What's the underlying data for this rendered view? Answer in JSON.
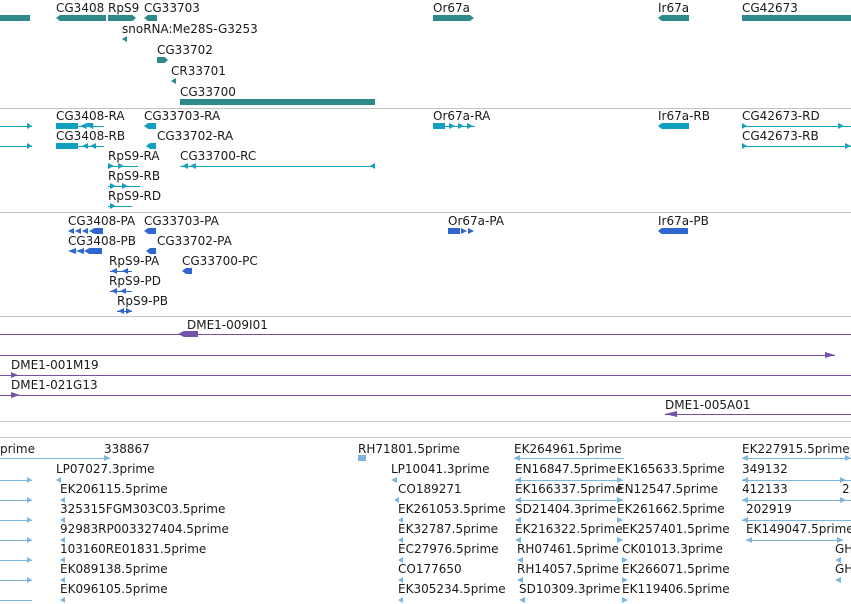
{
  "colors": {
    "gene": "#2e8a8a",
    "transcript": "#119fbf",
    "protein": "#2f66cf",
    "clone": "#7452a8",
    "est": "#7cb6dc",
    "separator": "#c4c4c4"
  },
  "tracks": [
    {
      "name": "genes",
      "features": [
        {
          "label": "CG3408",
          "kind": "gene"
        },
        {
          "label": "RpS9",
          "kind": "gene"
        },
        {
          "label": "CG33703",
          "kind": "gene"
        },
        {
          "label": "snoRNA:Me28S-G3253",
          "kind": "gene"
        },
        {
          "label": "CG33702",
          "kind": "gene"
        },
        {
          "label": "CR33701",
          "kind": "gene"
        },
        {
          "label": "CG33700",
          "kind": "gene"
        },
        {
          "label": "Or67a",
          "kind": "gene"
        },
        {
          "label": "Ir67a",
          "kind": "gene"
        },
        {
          "label": "CG42673",
          "kind": "gene"
        }
      ]
    },
    {
      "name": "transcripts",
      "features": [
        {
          "label": "CG3408-RA"
        },
        {
          "label": "CG3408-RB"
        },
        {
          "label": "CG33703-RA"
        },
        {
          "label": "CG33702-RA"
        },
        {
          "label": "RpS9-RA"
        },
        {
          "label": "RpS9-RB"
        },
        {
          "label": "RpS9-RD"
        },
        {
          "label": "CG33700-RC"
        },
        {
          "label": "Or67a-RA"
        },
        {
          "label": "Ir67a-RB"
        },
        {
          "label": "CG42673-RD"
        },
        {
          "label": "CG42673-RB"
        }
      ]
    },
    {
      "name": "proteins",
      "features": [
        {
          "label": "CG3408-PA"
        },
        {
          "label": "CG3408-PB"
        },
        {
          "label": "CG33703-PA"
        },
        {
          "label": "CG33702-PA"
        },
        {
          "label": "RpS9-PA"
        },
        {
          "label": "RpS9-PD"
        },
        {
          "label": "RpS9-PB"
        },
        {
          "label": "CG33700-PC"
        },
        {
          "label": "Or67a-PA"
        },
        {
          "label": "Ir67a-PB"
        }
      ]
    },
    {
      "name": "clones",
      "features": [
        {
          "label": "DME1-009I01"
        },
        {
          "label": "DME1-001M19"
        },
        {
          "label": "DME1-021G13"
        },
        {
          "label": "DME1-005A01"
        }
      ]
    },
    {
      "name": "ests",
      "features": [
        {
          "label": "prime"
        },
        {
          "label": "338867"
        },
        {
          "label": "RH71801.5prime"
        },
        {
          "label": "EK264961.5prime"
        },
        {
          "label": "EK227915.5prime"
        },
        {
          "label": "LP07027.3prime"
        },
        {
          "label": "LP10041.3prime"
        },
        {
          "label": "EN16847.5prime"
        },
        {
          "label": "EK165633.5prime"
        },
        {
          "label": "349132"
        },
        {
          "label": "EK206115.5prime"
        },
        {
          "label": "CO189271"
        },
        {
          "label": "EK166337.5prime"
        },
        {
          "label": "EN12547.5prime"
        },
        {
          "label": "412133"
        },
        {
          "label": "2"
        },
        {
          "label": "325315FGM303C03.5prime"
        },
        {
          "label": "EK261053.5prime"
        },
        {
          "label": "SD21404.3prime"
        },
        {
          "label": "EK261662.5prime"
        },
        {
          "label": "202919"
        },
        {
          "label": "92983RP003327404.5prime"
        },
        {
          "label": "EK32787.5prime"
        },
        {
          "label": "EK216322.5prime"
        },
        {
          "label": "EK257401.5prime"
        },
        {
          "label": "EK149047.5prime"
        },
        {
          "label": "103160RE01831.5prime"
        },
        {
          "label": "EC27976.5prime"
        },
        {
          "label": "RH07461.5prime"
        },
        {
          "label": "CK01013.3prime"
        },
        {
          "label": "GH"
        },
        {
          "label": "EK089138.5prime"
        },
        {
          "label": "CO177650"
        },
        {
          "label": "RH14057.5prime"
        },
        {
          "label": "EK266071.5prime"
        },
        {
          "label": "GH"
        },
        {
          "label": "EK096105.5prime"
        },
        {
          "label": "EK305234.5prime"
        },
        {
          "label": "SD10309.3prime"
        },
        {
          "label": "EK119406.5prime"
        }
      ]
    }
  ]
}
